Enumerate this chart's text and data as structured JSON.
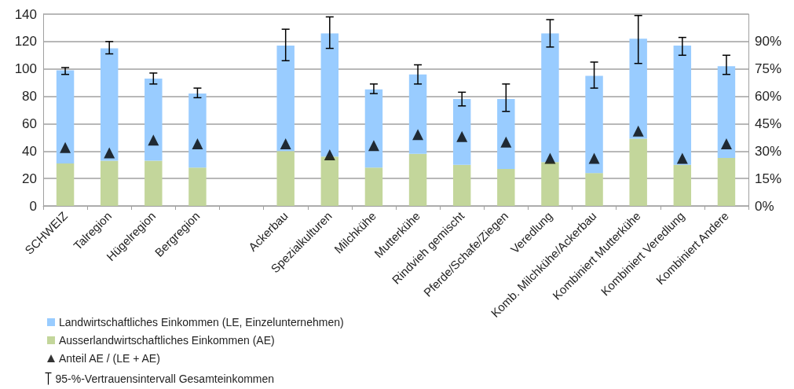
{
  "chart_data": {
    "type": "bar",
    "stacked": true,
    "categories": [
      "SCHWEIZ",
      "Talregion",
      "Hügelregion",
      "Bergregion",
      null,
      "Ackerbau",
      "Spezialkulturen",
      "Milchkühe",
      "Mutterkühe",
      "Rindvieh gemischt",
      "Pferde/Schafe/Ziegen",
      "Veredlung",
      "Komb. Milchkühe/Ackerbau",
      "Kombiniert Mutterkühe",
      "Kombiniert Veredlung",
      "Kombiniert Andere"
    ],
    "series": [
      {
        "name": "Ausserlandwirtschaftliches Einkommen (AE)",
        "color": "#c3d69b",
        "values": [
          31,
          33,
          33,
          28,
          null,
          40,
          36,
          28,
          38,
          30,
          27,
          32,
          24,
          49,
          30,
          35
        ]
      },
      {
        "name": "Landwirtschaftliches Einkommen (LE, Einzelunternehmen)",
        "color": "#99ccff",
        "values": [
          68,
          82,
          60,
          54,
          null,
          77,
          90,
          57,
          58,
          48,
          51,
          94,
          71,
          73,
          87,
          67
        ],
        "errors": [
          [
            96,
            101
          ],
          [
            111,
            120
          ],
          [
            89,
            97
          ],
          [
            79,
            86
          ],
          null,
          [
            106,
            129
          ],
          [
            115,
            138
          ],
          [
            82,
            89
          ],
          [
            89,
            103
          ],
          [
            73,
            83
          ],
          [
            69,
            89
          ],
          [
            116,
            136
          ],
          [
            86,
            105
          ],
          [
            104,
            139
          ],
          [
            110,
            123
          ],
          [
            96,
            110
          ]
        ]
      },
      {
        "name": "Anteil AE / (LE + AE)",
        "type": "scatter",
        "axis": "y2",
        "marker": "triangle",
        "color": "#000000",
        "values": [
          32,
          29,
          36,
          34,
          null,
          34,
          28,
          33,
          39,
          38,
          35,
          26,
          26,
          41,
          26,
          34
        ]
      }
    ],
    "ylim": [
      0,
      140
    ],
    "yticks": [
      0,
      20,
      40,
      60,
      80,
      100,
      120,
      140
    ],
    "y2lim": [
      0,
      105
    ],
    "y2ticks": [
      {
        "value": 0,
        "label": "0%"
      },
      {
        "value": 15,
        "label": "15%"
      },
      {
        "value": 30,
        "label": "30%"
      },
      {
        "value": 45,
        "label": "45%"
      },
      {
        "value": 60,
        "label": "60%"
      },
      {
        "value": 75,
        "label": "75%"
      },
      {
        "value": 90,
        "label": "90%"
      },
      {
        "value": 105,
        "label": null
      }
    ],
    "grid": "y",
    "legend": "bottom left",
    "annotations": [
      "95-%-Vertrauensintervall Gesamteinkommen"
    ]
  }
}
